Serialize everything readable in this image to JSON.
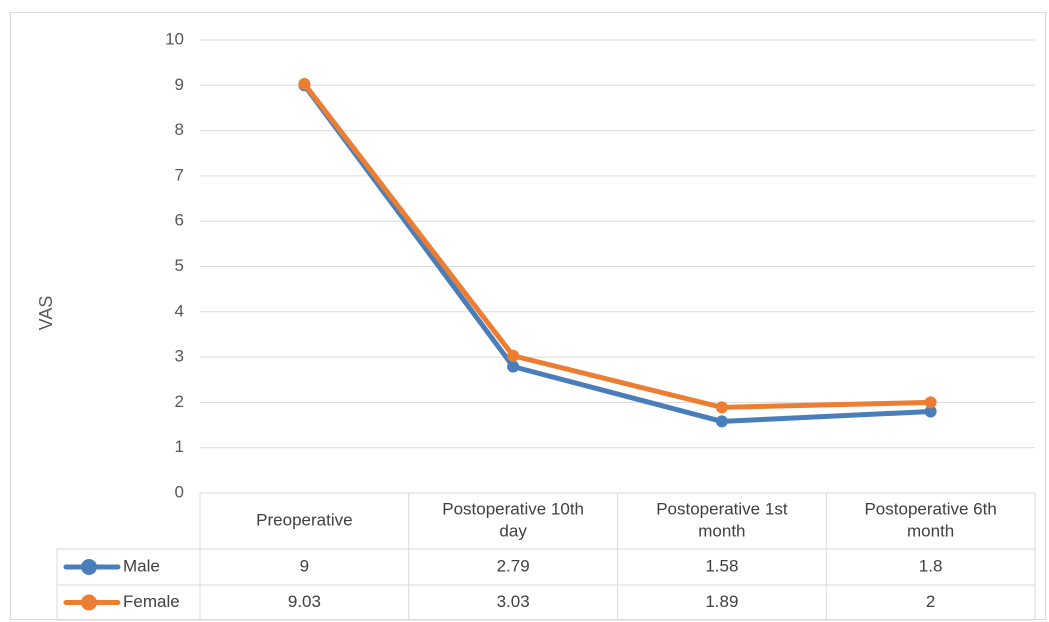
{
  "chart_data": {
    "type": "line",
    "title": "",
    "ylabel": "VAS",
    "xlabel": "",
    "ylim": [
      0,
      10
    ],
    "yticks": [
      0,
      1,
      2,
      3,
      4,
      5,
      6,
      7,
      8,
      9,
      10
    ],
    "grid": true,
    "categories": [
      [
        "Preoperative"
      ],
      [
        "Postoperative 10th",
        "day"
      ],
      [
        "Postoperative 1st",
        "month"
      ],
      [
        "Postoperative 6th",
        "month"
      ]
    ],
    "series": [
      {
        "name": "Male",
        "color": "#4a7ebb",
        "values": [
          9,
          2.79,
          1.58,
          1.8
        ],
        "labels": [
          "9",
          "2.79",
          "1.58",
          "1.8"
        ]
      },
      {
        "name": "Female",
        "color": "#ed7d31",
        "values": [
          9.03,
          3.03,
          1.89,
          2
        ],
        "labels": [
          "9.03",
          "3.03",
          "1.89",
          "2"
        ]
      }
    ],
    "legend": "data-table"
  }
}
